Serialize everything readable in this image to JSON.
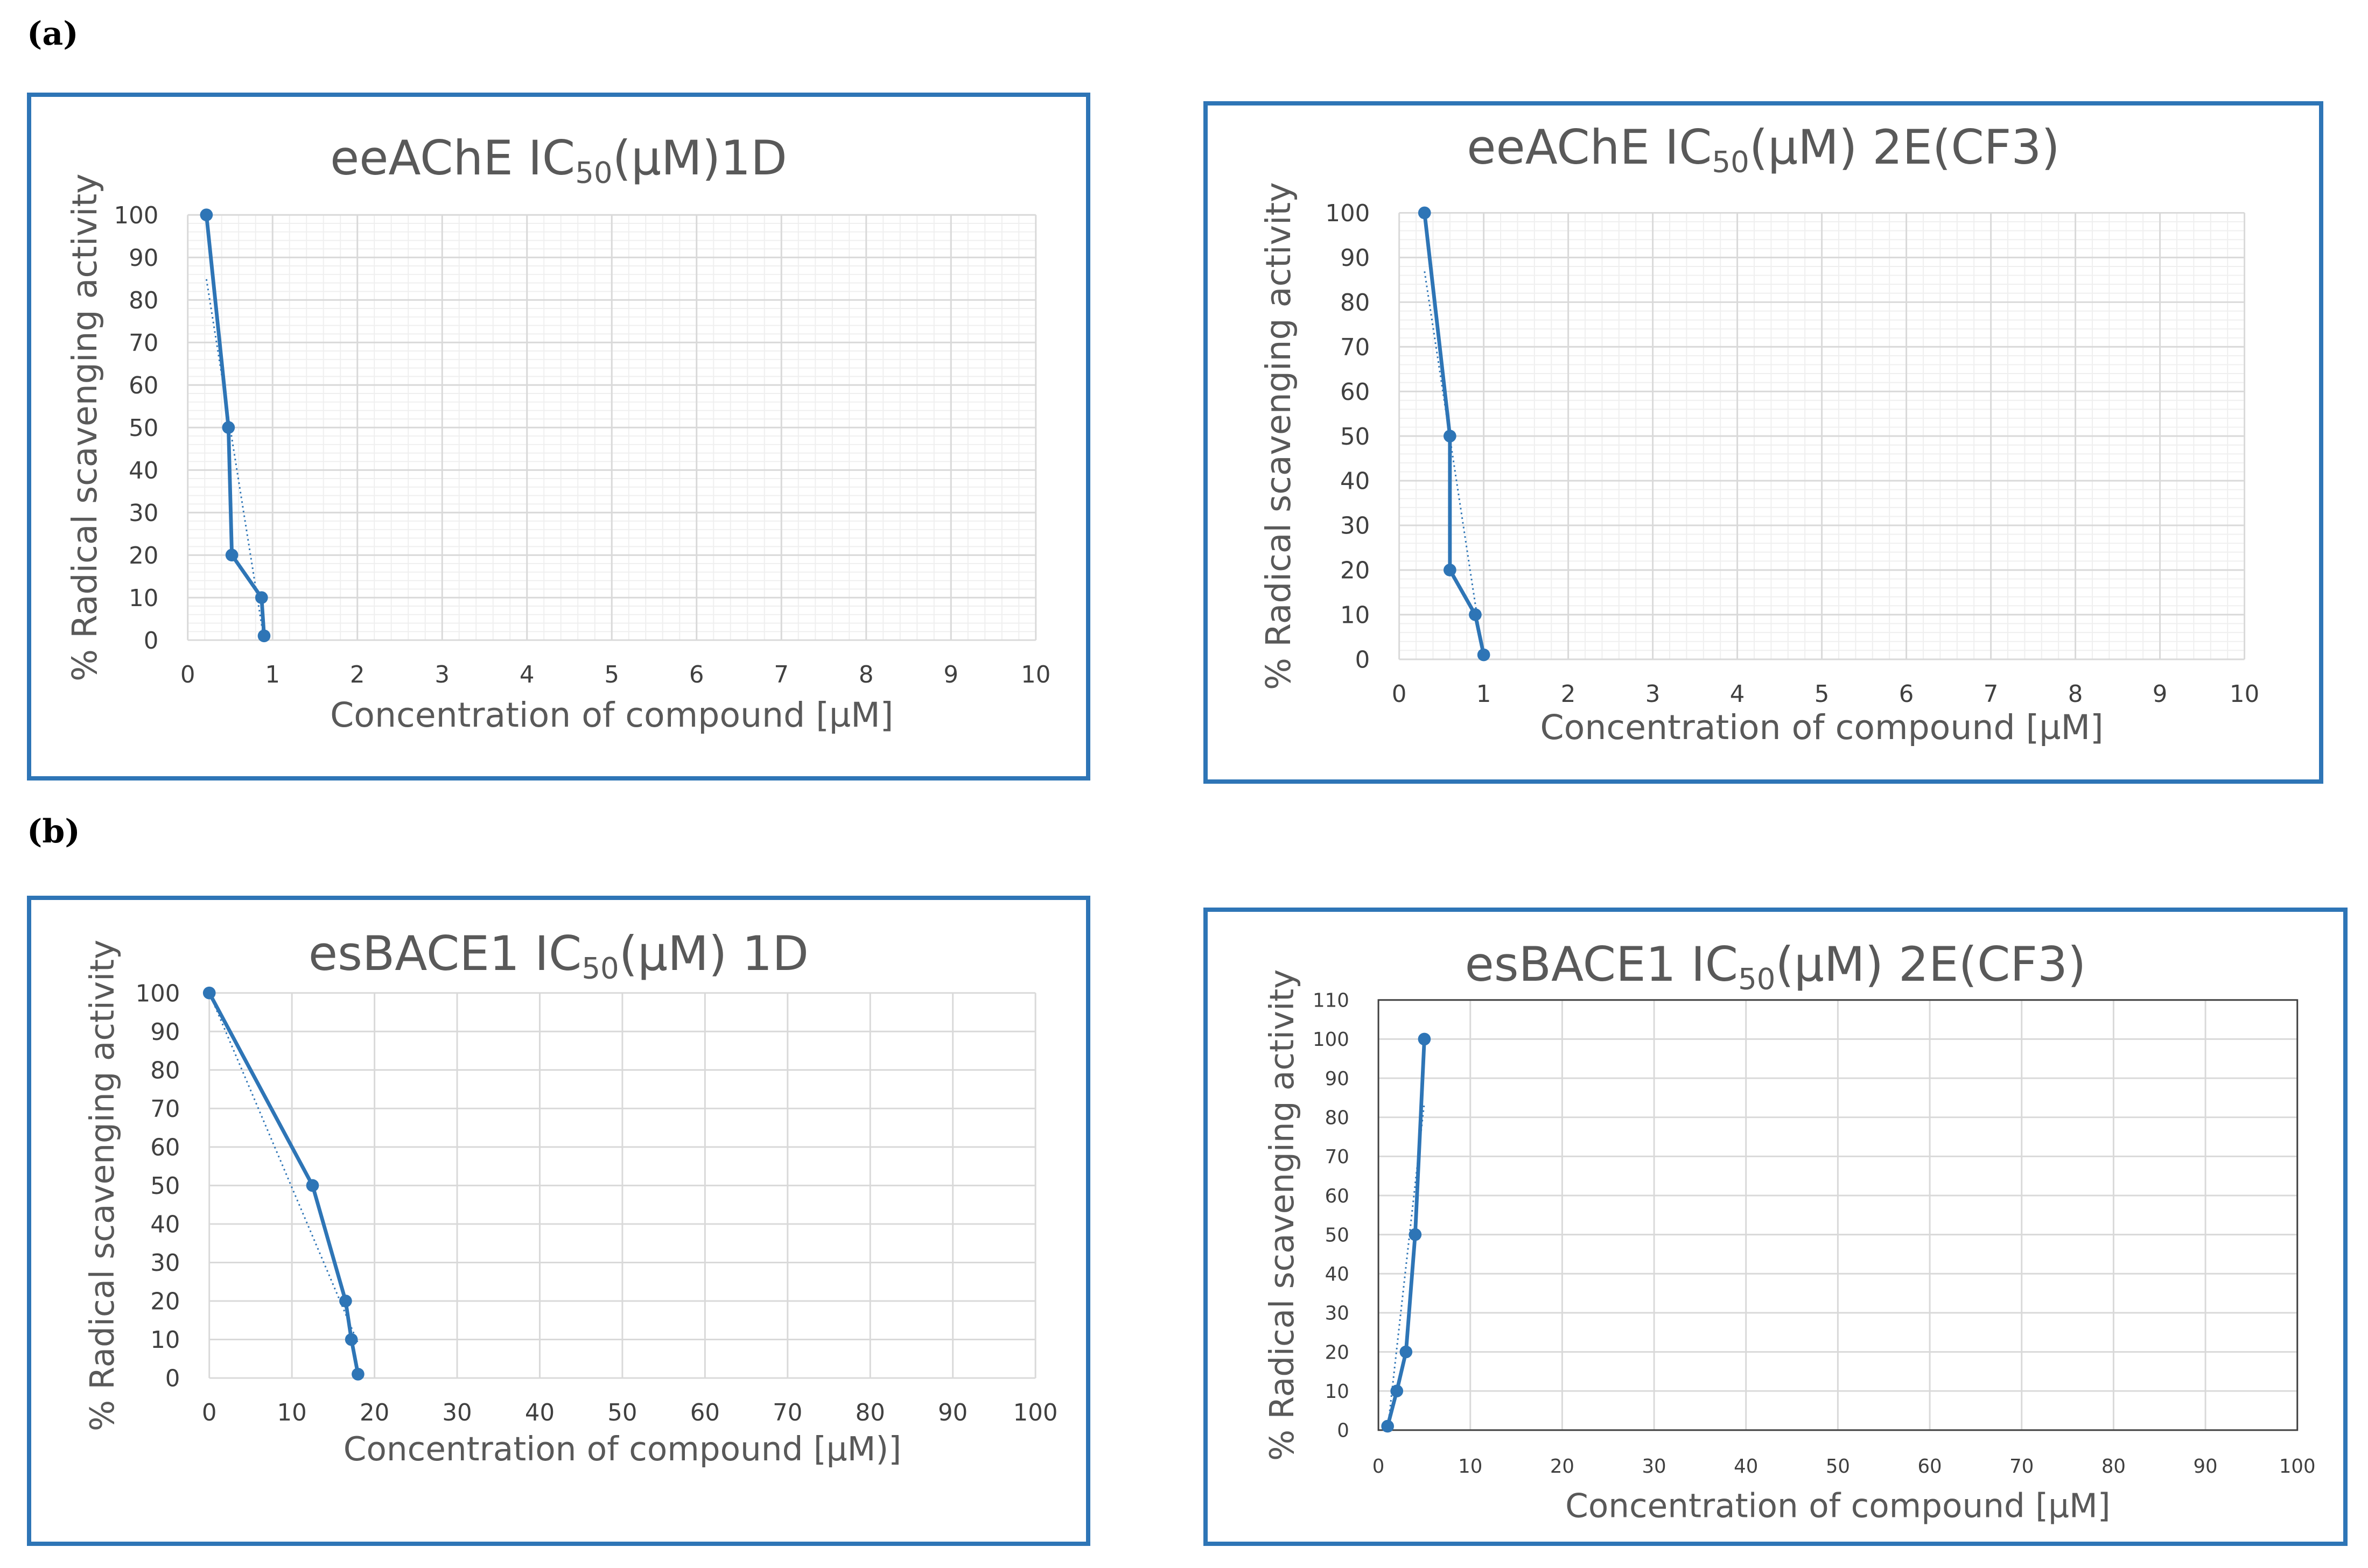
{
  "panels": {
    "a": "(a)",
    "b": "(b)"
  },
  "style": {
    "series_color": "#2e75b6",
    "grid_color": "#d9d9d9",
    "frame_color": "#2e75b6",
    "text_color": "#595959"
  },
  "chart_data": [
    {
      "type": "line",
      "title_main": "eeAChE IC",
      "title_sub": "50",
      "title_rest": "(µM)1D",
      "xlabel": "Concentration of compound [µM]",
      "ylabel": "% Radical scavenging activity",
      "xlim": [
        0,
        10
      ],
      "ylim": [
        0,
        100
      ],
      "xticks": [
        "0",
        "1",
        "2",
        "3",
        "4",
        "5",
        "6",
        "7",
        "8",
        "9",
        "10"
      ],
      "yticks": [
        "0",
        "10",
        "20",
        "30",
        "40",
        "50",
        "60",
        "70",
        "80",
        "90",
        "100"
      ],
      "grid": "major and minor",
      "trendline": "dotted",
      "series": [
        {
          "x": [
            0.22,
            0.48,
            0.52,
            0.87,
            0.9
          ],
          "y": [
            100,
            50,
            20,
            10,
            1
          ]
        }
      ]
    },
    {
      "type": "line",
      "title_main": "eeAChE IC",
      "title_sub": "50",
      "title_rest": "(µM) 2E(CF3)",
      "xlabel": "Concentration of compound [µM]",
      "ylabel": "% Radical scavenging activity",
      "xlim": [
        0,
        10
      ],
      "ylim": [
        0,
        100
      ],
      "xticks": [
        "0",
        "1",
        "2",
        "3",
        "4",
        "5",
        "6",
        "7",
        "8",
        "9",
        "10"
      ],
      "yticks": [
        "0",
        "10",
        "20",
        "30",
        "40",
        "50",
        "60",
        "70",
        "80",
        "90",
        "100"
      ],
      "grid": "major and minor",
      "trendline": "dotted",
      "series": [
        {
          "x": [
            0.3,
            0.6,
            0.6,
            0.9,
            1.0
          ],
          "y": [
            100,
            50,
            20,
            10,
            1
          ]
        }
      ]
    },
    {
      "type": "line",
      "title_main": "esBACE1 IC",
      "title_sub": "50",
      "title_rest": "(µM) 1D",
      "xlabel": "Concentration of compound [µM)]",
      "ylabel": "% Radical scavenging activity",
      "xlim": [
        0,
        100
      ],
      "ylim": [
        0,
        100
      ],
      "xticks": [
        "0",
        "10",
        "20",
        "30",
        "40",
        "50",
        "60",
        "70",
        "80",
        "90",
        "100"
      ],
      "yticks": [
        "0",
        "10",
        "20",
        "30",
        "40",
        "50",
        "60",
        "70",
        "80",
        "90",
        "100"
      ],
      "grid": "major",
      "trendline": "dotted",
      "series": [
        {
          "x": [
            0,
            12.5,
            16.5,
            17.2,
            18
          ],
          "y": [
            100,
            50,
            20,
            10,
            1
          ]
        }
      ]
    },
    {
      "type": "line",
      "title_main": "esBACE1 IC",
      "title_sub": "50",
      "title_rest": "(µM) 2E(CF3)",
      "xlabel": "Concentration of compound [µM]",
      "ylabel": "% Radical scavenging activity",
      "xlim": [
        0,
        100
      ],
      "ylim": [
        0,
        110
      ],
      "xticks": [
        "0",
        "10",
        "20",
        "30",
        "40",
        "50",
        "60",
        "70",
        "80",
        "90",
        "100"
      ],
      "yticks": [
        "0",
        "10",
        "20",
        "30",
        "40",
        "50",
        "60",
        "70",
        "80",
        "90",
        "100",
        "110"
      ],
      "grid": "major",
      "trendline": "dotted",
      "series": [
        {
          "x": [
            1,
            2,
            3,
            4,
            5
          ],
          "y": [
            1,
            10,
            20,
            50,
            100
          ]
        }
      ]
    }
  ]
}
